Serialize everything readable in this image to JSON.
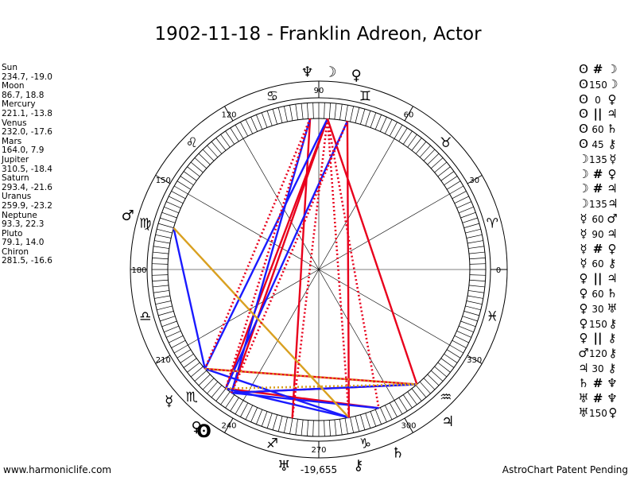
{
  "title": "1902-11-18 - Franklin Adreon, Actor",
  "footer": {
    "site": "www.harmoniclife.com",
    "patent": "AstroChart Patent Pending"
  },
  "bottom_value": "-19,655",
  "planets": [
    {
      "name": "Sun",
      "coords": "234.7, -19.0",
      "glyph": "ʘ",
      "lon": 234.7
    },
    {
      "name": "Moon",
      "coords": "86.7, 18.8",
      "glyph": "☽",
      "lon": 86.7
    },
    {
      "name": "Mercury",
      "coords": "221.1, -13.8",
      "glyph": "☿",
      "lon": 221.1
    },
    {
      "name": "Venus",
      "coords": "232.0, -17.6",
      "glyph": "♀",
      "lon": 232.0
    },
    {
      "name": "Mars",
      "coords": "164.0, 7.9",
      "glyph": "♂",
      "lon": 164.0
    },
    {
      "name": "Jupiter",
      "coords": "310.5, -18.4",
      "glyph": "♃",
      "lon": 310.5
    },
    {
      "name": "Saturn",
      "coords": "293.4, -21.6",
      "glyph": "♄",
      "lon": 293.4
    },
    {
      "name": "Uranus",
      "coords": "259.9, -23.2",
      "glyph": "♅",
      "lon": 259.9
    },
    {
      "name": "Neptune",
      "coords": "93.3, 22.3",
      "glyph": "♆",
      "lon": 93.3
    },
    {
      "name": "Pluto",
      "coords": "79.1, 14.0",
      "glyph": "♀",
      "lon": 79.1
    },
    {
      "name": "Chiron",
      "coords": "281.5, -16.6",
      "glyph": "⚷",
      "lon": 281.5
    }
  ],
  "degree_labels": [
    "0",
    "30",
    "60",
    "90",
    "120",
    "150",
    "180",
    "210",
    "240",
    "270",
    "300",
    "330"
  ],
  "zodiac": [
    {
      "glyph": "♈",
      "lon": 15
    },
    {
      "glyph": "♉",
      "lon": 45
    },
    {
      "glyph": "♊",
      "lon": 75
    },
    {
      "glyph": "♋",
      "lon": 105
    },
    {
      "glyph": "♌",
      "lon": 135
    },
    {
      "glyph": "♍",
      "lon": 165
    },
    {
      "glyph": "♎",
      "lon": 195
    },
    {
      "glyph": "♏",
      "lon": 225
    },
    {
      "glyph": "♐",
      "lon": 255
    },
    {
      "glyph": "♑",
      "lon": 285
    },
    {
      "glyph": "♒",
      "lon": 315
    },
    {
      "glyph": "♓",
      "lon": 345
    }
  ],
  "aspects": [
    {
      "a": "ʘ",
      "sym": "#",
      "b": "☽"
    },
    {
      "a": "ʘ",
      "sym": "150",
      "b": "☽"
    },
    {
      "a": "ʘ",
      "sym": "0",
      "b": "♀"
    },
    {
      "a": "ʘ",
      "sym": "||",
      "b": "♃"
    },
    {
      "a": "ʘ",
      "sym": "60",
      "b": "♄"
    },
    {
      "a": "ʘ",
      "sym": "45",
      "b": "⚷"
    },
    {
      "a": "☽",
      "sym": "135",
      "b": "☿"
    },
    {
      "a": "☽",
      "sym": "#",
      "b": "♀"
    },
    {
      "a": "☽",
      "sym": "#",
      "b": "♃"
    },
    {
      "a": "☽",
      "sym": "135",
      "b": "♃"
    },
    {
      "a": "☿",
      "sym": "60",
      "b": "♂"
    },
    {
      "a": "☿",
      "sym": "90",
      "b": "♃"
    },
    {
      "a": "☿",
      "sym": "#",
      "b": "♀"
    },
    {
      "a": "☿",
      "sym": "60",
      "b": "⚷"
    },
    {
      "a": "♀",
      "sym": "||",
      "b": "♃"
    },
    {
      "a": "♀",
      "sym": "60",
      "b": "♄"
    },
    {
      "a": "♀",
      "sym": "30",
      "b": "♅"
    },
    {
      "a": "♀",
      "sym": "150",
      "b": "⚷"
    },
    {
      "a": "♀",
      "sym": "||",
      "b": "⚷"
    },
    {
      "a": "♂",
      "sym": "120",
      "b": "⚷"
    },
    {
      "a": "♃",
      "sym": "30",
      "b": "⚷"
    },
    {
      "a": "♄",
      "sym": "#",
      "b": "♆"
    },
    {
      "a": "♅",
      "sym": "#",
      "b": "♆"
    },
    {
      "a": "♅",
      "sym": "150",
      "b": "♀"
    }
  ],
  "aspect_lines": [
    {
      "p1": "Moon",
      "p2": "Sun",
      "style": "solid",
      "color": "#e8001c"
    },
    {
      "p1": "Moon",
      "p2": "Venus",
      "style": "solid",
      "color": "#e8001c"
    },
    {
      "p1": "Moon",
      "p2": "Jupiter",
      "style": "solid",
      "color": "#e8001c"
    },
    {
      "p1": "Pluto",
      "p2": "Chiron",
      "style": "solid",
      "color": "#e8001c"
    },
    {
      "p1": "Neptune",
      "p2": "Uranus",
      "style": "solid",
      "color": "#e8001c"
    },
    {
      "p1": "Sun",
      "p2": "Jupiter",
      "style": "solid",
      "color": "#e8001c"
    },
    {
      "p1": "Mercury",
      "p2": "Jupiter",
      "style": "solid",
      "color": "#e8001c"
    },
    {
      "p1": "Venus",
      "p2": "Saturn",
      "style": "solid",
      "color": "#e8001c"
    },
    {
      "p1": "Moon",
      "p2": "Mercury",
      "style": "solid",
      "color": "#1a1aff"
    },
    {
      "p1": "Neptune",
      "p2": "Sun",
      "style": "solid",
      "color": "#1a1aff"
    },
    {
      "p1": "Pluto",
      "p2": "Venus",
      "style": "solid",
      "color": "#1a1aff"
    },
    {
      "p1": "Mars",
      "p2": "Mercury",
      "style": "solid",
      "color": "#1a1aff"
    },
    {
      "p1": "Sun",
      "p2": "Saturn",
      "style": "solid",
      "color": "#1a1aff"
    },
    {
      "p1": "Mercury",
      "p2": "Chiron",
      "style": "solid",
      "color": "#1a1aff"
    },
    {
      "p1": "Venus",
      "p2": "Chiron",
      "style": "solid",
      "color": "#1a1aff"
    },
    {
      "p1": "Jupiter",
      "p2": "Sun",
      "style": "solid",
      "color": "#1a1aff"
    },
    {
      "p1": "Mars",
      "p2": "Chiron",
      "style": "solid",
      "color": "#d9a020"
    },
    {
      "p1": "Moon",
      "p2": "Uranus",
      "style": "dotted",
      "color": "#e8001c"
    },
    {
      "p1": "Moon",
      "p2": "Chiron",
      "style": "dotted",
      "color": "#e8001c"
    },
    {
      "p1": "Neptune",
      "p2": "Mercury",
      "style": "dotted",
      "color": "#e8001c"
    },
    {
      "p1": "Neptune",
      "p2": "Venus",
      "style": "dotted",
      "color": "#e8001c"
    },
    {
      "p1": "Pluto",
      "p2": "Sun",
      "style": "dotted",
      "color": "#e8001c"
    },
    {
      "p1": "Moon",
      "p2": "Saturn",
      "style": "dotted",
      "color": "#e8001c"
    },
    {
      "p1": "Mercury",
      "p2": "Jupiter",
      "style": "dotted",
      "color": "#d9a020"
    },
    {
      "p1": "Venus",
      "p2": "Jupiter",
      "style": "dotted",
      "color": "#d9a020"
    }
  ]
}
